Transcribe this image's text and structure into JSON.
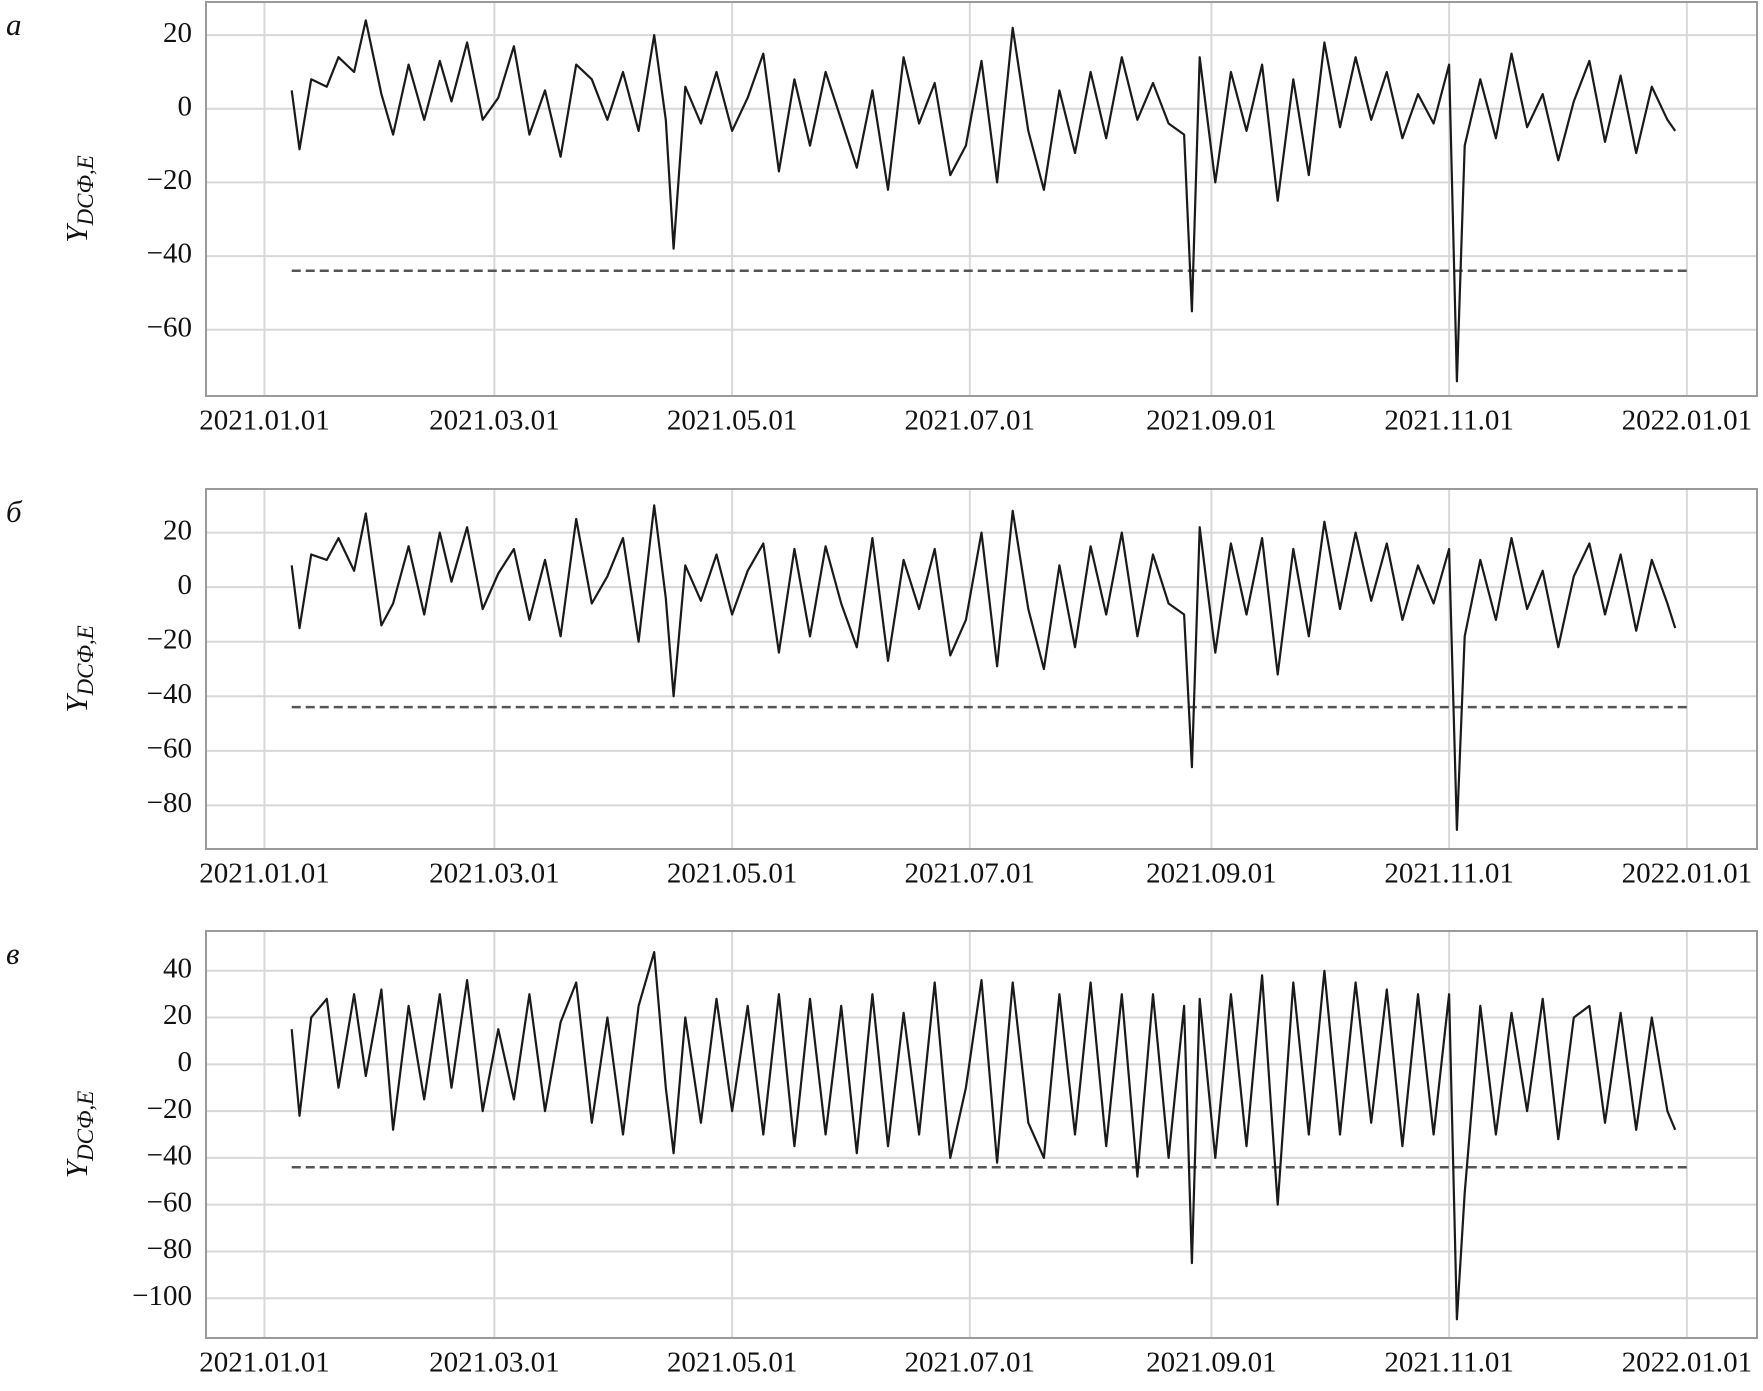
{
  "chart_data": [
    {
      "type": "line",
      "panel_label": "а",
      "ylabel": "Y",
      "ylabel_sub": "DCФ,E",
      "color": "#1a1a1a",
      "grid": true,
      "threshold": -44,
      "xlim": [
        "2020.12.17",
        "2022.01.19"
      ],
      "xticks": [
        "2021.01.01",
        "2021.03.01",
        "2021.05.01",
        "2021.07.01",
        "2021.09.01",
        "2021.11.01",
        "2022.01.01"
      ],
      "ylim": [
        -78,
        29
      ],
      "yticks": [
        20,
        0,
        {
          "value": -20,
          "label": "−20"
        },
        {
          "value": -40,
          "label": "−40"
        },
        {
          "value": -60,
          "label": "−60"
        }
      ],
      "x": [
        "2021.01.08",
        "2021.01.10",
        "2021.01.13",
        "2021.01.17",
        "2021.01.20",
        "2021.01.24",
        "2021.01.27",
        "2021.01.31",
        "2021.02.03",
        "2021.02.07",
        "2021.02.11",
        "2021.02.15",
        "2021.02.18",
        "2021.02.22",
        "2021.02.26",
        "2021.03.02",
        "2021.03.06",
        "2021.03.10",
        "2021.03.14",
        "2021.03.18",
        "2021.03.22",
        "2021.03.26",
        "2021.03.30",
        "2021.04.03",
        "2021.04.07",
        "2021.04.11",
        "2021.04.14",
        "2021.04.16",
        "2021.04.19",
        "2021.04.23",
        "2021.04.27",
        "2021.05.01",
        "2021.05.05",
        "2021.05.09",
        "2021.05.13",
        "2021.05.17",
        "2021.05.21",
        "2021.05.25",
        "2021.05.29",
        "2021.06.02",
        "2021.06.06",
        "2021.06.10",
        "2021.06.14",
        "2021.06.18",
        "2021.06.22",
        "2021.06.26",
        "2021.06.30",
        "2021.07.04",
        "2021.07.08",
        "2021.07.12",
        "2021.07.16",
        "2021.07.20",
        "2021.07.24",
        "2021.07.28",
        "2021.08.01",
        "2021.08.05",
        "2021.08.09",
        "2021.08.13",
        "2021.08.17",
        "2021.08.21",
        "2021.08.25",
        "2021.08.27",
        "2021.08.29",
        "2021.09.02",
        "2021.09.06",
        "2021.09.10",
        "2021.09.14",
        "2021.09.18",
        "2021.09.22",
        "2021.09.26",
        "2021.09.30",
        "2021.10.04",
        "2021.10.08",
        "2021.10.12",
        "2021.10.16",
        "2021.10.20",
        "2021.10.24",
        "2021.10.28",
        "2021.11.01",
        "2021.11.03",
        "2021.11.05",
        "2021.11.09",
        "2021.11.13",
        "2021.11.17",
        "2021.11.21",
        "2021.11.25",
        "2021.11.29",
        "2021.12.03",
        "2021.12.07",
        "2021.12.11",
        "2021.12.15",
        "2021.12.19",
        "2021.12.23",
        "2021.12.27",
        "2021.12.29"
      ],
      "values": [
        5,
        -11,
        8,
        6,
        14,
        10,
        24,
        4,
        -7,
        12,
        -3,
        13,
        2,
        18,
        -3,
        3,
        17,
        -7,
        5,
        -13,
        12,
        8,
        -3,
        10,
        -6,
        20,
        -3,
        -38,
        6,
        -4,
        10,
        -6,
        3,
        15,
        -17,
        8,
        -10,
        10,
        -3,
        -16,
        5,
        -22,
        14,
        -4,
        7,
        -18,
        -10,
        13,
        -20,
        22,
        -6,
        -22,
        5,
        -12,
        10,
        -8,
        14,
        -3,
        7,
        -4,
        -7,
        -55,
        14,
        -20,
        10,
        -6,
        12,
        -25,
        8,
        -18,
        18,
        -5,
        14,
        -3,
        10,
        -8,
        4,
        -4,
        12,
        -74,
        -10,
        8,
        -8,
        15,
        -5,
        4,
        -14,
        2,
        13,
        -9,
        9,
        -12,
        6,
        -3,
        -6
      ]
    },
    {
      "type": "line",
      "panel_label": "б",
      "ylabel": "Y",
      "ylabel_sub": "DCФ,E",
      "color": "#1a1a1a",
      "grid": true,
      "threshold": -44,
      "xlim": [
        "2020.12.17",
        "2022.01.19"
      ],
      "xticks": [
        "2021.01.01",
        "2021.03.01",
        "2021.05.01",
        "2021.07.01",
        "2021.09.01",
        "2021.11.01",
        "2022.01.01"
      ],
      "ylim": [
        -96,
        36
      ],
      "yticks": [
        20,
        0,
        {
          "value": -20,
          "label": "−20"
        },
        {
          "value": -40,
          "label": "−40"
        },
        {
          "value": -60,
          "label": "−60"
        },
        {
          "value": -80,
          "label": "−80"
        }
      ],
      "x": [
        "2021.01.08",
        "2021.01.10",
        "2021.01.13",
        "2021.01.17",
        "2021.01.20",
        "2021.01.24",
        "2021.01.27",
        "2021.01.31",
        "2021.02.03",
        "2021.02.07",
        "2021.02.11",
        "2021.02.15",
        "2021.02.18",
        "2021.02.22",
        "2021.02.26",
        "2021.03.02",
        "2021.03.06",
        "2021.03.10",
        "2021.03.14",
        "2021.03.18",
        "2021.03.22",
        "2021.03.26",
        "2021.03.30",
        "2021.04.03",
        "2021.04.07",
        "2021.04.11",
        "2021.04.14",
        "2021.04.16",
        "2021.04.19",
        "2021.04.23",
        "2021.04.27",
        "2021.05.01",
        "2021.05.05",
        "2021.05.09",
        "2021.05.13",
        "2021.05.17",
        "2021.05.21",
        "2021.05.25",
        "2021.05.29",
        "2021.06.02",
        "2021.06.06",
        "2021.06.10",
        "2021.06.14",
        "2021.06.18",
        "2021.06.22",
        "2021.06.26",
        "2021.06.30",
        "2021.07.04",
        "2021.07.08",
        "2021.07.12",
        "2021.07.16",
        "2021.07.20",
        "2021.07.24",
        "2021.07.28",
        "2021.08.01",
        "2021.08.05",
        "2021.08.09",
        "2021.08.13",
        "2021.08.17",
        "2021.08.21",
        "2021.08.25",
        "2021.08.27",
        "2021.08.29",
        "2021.09.02",
        "2021.09.06",
        "2021.09.10",
        "2021.09.14",
        "2021.09.18",
        "2021.09.22",
        "2021.09.26",
        "2021.09.30",
        "2021.10.04",
        "2021.10.08",
        "2021.10.12",
        "2021.10.16",
        "2021.10.20",
        "2021.10.24",
        "2021.10.28",
        "2021.11.01",
        "2021.11.03",
        "2021.11.05",
        "2021.11.09",
        "2021.11.13",
        "2021.11.17",
        "2021.11.21",
        "2021.11.25",
        "2021.11.29",
        "2021.12.03",
        "2021.12.07",
        "2021.12.11",
        "2021.12.15",
        "2021.12.19",
        "2021.12.23",
        "2021.12.27",
        "2021.12.29"
      ],
      "values": [
        8,
        -15,
        12,
        10,
        18,
        6,
        27,
        -14,
        -6,
        15,
        -10,
        20,
        2,
        22,
        -8,
        5,
        14,
        -12,
        10,
        -18,
        25,
        -6,
        4,
        18,
        -20,
        30,
        -4,
        -40,
        8,
        -5,
        12,
        -10,
        6,
        16,
        -24,
        14,
        -18,
        15,
        -6,
        -22,
        18,
        -27,
        10,
        -8,
        14,
        -25,
        -12,
        20,
        -29,
        28,
        -8,
        -30,
        8,
        -22,
        15,
        -10,
        20,
        -18,
        12,
        -6,
        -10,
        -66,
        22,
        -24,
        16,
        -10,
        18,
        -32,
        14,
        -18,
        24,
        -8,
        20,
        -5,
        16,
        -12,
        8,
        -6,
        14,
        -89,
        -18,
        10,
        -12,
        18,
        -8,
        6,
        -22,
        4,
        16,
        -10,
        12,
        -16,
        10,
        -6,
        -15
      ]
    },
    {
      "type": "line",
      "panel_label": "в",
      "ylabel": "Y",
      "ylabel_sub": "DCФ,E",
      "color": "#1a1a1a",
      "grid": true,
      "threshold": -44,
      "xlim": [
        "2020.12.17",
        "2022.01.19"
      ],
      "xticks": [
        "2021.01.01",
        "2021.03.01",
        "2021.05.01",
        "2021.07.01",
        "2021.09.01",
        "2021.11.01",
        "2022.01.01"
      ],
      "ylim": [
        -117,
        57
      ],
      "yticks": [
        40,
        20,
        0,
        {
          "value": -20,
          "label": "−20"
        },
        {
          "value": -40,
          "label": "−40"
        },
        {
          "value": -60,
          "label": "−60"
        },
        {
          "value": -80,
          "label": "−80"
        },
        {
          "value": -100,
          "label": "−100"
        }
      ],
      "x": [
        "2021.01.08",
        "2021.01.10",
        "2021.01.13",
        "2021.01.17",
        "2021.01.20",
        "2021.01.24",
        "2021.01.27",
        "2021.01.31",
        "2021.02.03",
        "2021.02.07",
        "2021.02.11",
        "2021.02.15",
        "2021.02.18",
        "2021.02.22",
        "2021.02.26",
        "2021.03.02",
        "2021.03.06",
        "2021.03.10",
        "2021.03.14",
        "2021.03.18",
        "2021.03.22",
        "2021.03.26",
        "2021.03.30",
        "2021.04.03",
        "2021.04.07",
        "2021.04.11",
        "2021.04.14",
        "2021.04.16",
        "2021.04.19",
        "2021.04.23",
        "2021.04.27",
        "2021.05.01",
        "2021.05.05",
        "2021.05.09",
        "2021.05.13",
        "2021.05.17",
        "2021.05.21",
        "2021.05.25",
        "2021.05.29",
        "2021.06.02",
        "2021.06.06",
        "2021.06.10",
        "2021.06.14",
        "2021.06.18",
        "2021.06.22",
        "2021.06.26",
        "2021.06.30",
        "2021.07.04",
        "2021.07.08",
        "2021.07.12",
        "2021.07.16",
        "2021.07.20",
        "2021.07.24",
        "2021.07.28",
        "2021.08.01",
        "2021.08.05",
        "2021.08.09",
        "2021.08.13",
        "2021.08.17",
        "2021.08.21",
        "2021.08.25",
        "2021.08.27",
        "2021.08.29",
        "2021.09.02",
        "2021.09.06",
        "2021.09.10",
        "2021.09.14",
        "2021.09.18",
        "2021.09.22",
        "2021.09.26",
        "2021.09.30",
        "2021.10.04",
        "2021.10.08",
        "2021.10.12",
        "2021.10.16",
        "2021.10.20",
        "2021.10.24",
        "2021.10.28",
        "2021.11.01",
        "2021.11.03",
        "2021.11.05",
        "2021.11.09",
        "2021.11.13",
        "2021.11.17",
        "2021.11.21",
        "2021.11.25",
        "2021.11.29",
        "2021.12.03",
        "2021.12.07",
        "2021.12.11",
        "2021.12.15",
        "2021.12.19",
        "2021.12.23",
        "2021.12.27",
        "2021.12.29"
      ],
      "values": [
        15,
        -22,
        20,
        28,
        -10,
        30,
        -5,
        32,
        -28,
        25,
        -15,
        30,
        -10,
        36,
        -20,
        15,
        -15,
        30,
        -20,
        18,
        35,
        -25,
        20,
        -30,
        25,
        48,
        -10,
        -38,
        20,
        -25,
        28,
        -20,
        25,
        -30,
        30,
        -35,
        28,
        -30,
        25,
        -38,
        30,
        -35,
        22,
        -30,
        35,
        -40,
        -10,
        36,
        -42,
        35,
        -25,
        -40,
        30,
        -30,
        35,
        -35,
        30,
        -48,
        30,
        -40,
        25,
        -85,
        28,
        -40,
        30,
        -35,
        38,
        -60,
        35,
        -30,
        40,
        -30,
        35,
        -25,
        32,
        -35,
        30,
        -30,
        30,
        -109,
        -55,
        25,
        -30,
        22,
        -20,
        28,
        -32,
        20,
        25,
        -25,
        22,
        -28,
        20,
        -20,
        -28
      ]
    }
  ]
}
